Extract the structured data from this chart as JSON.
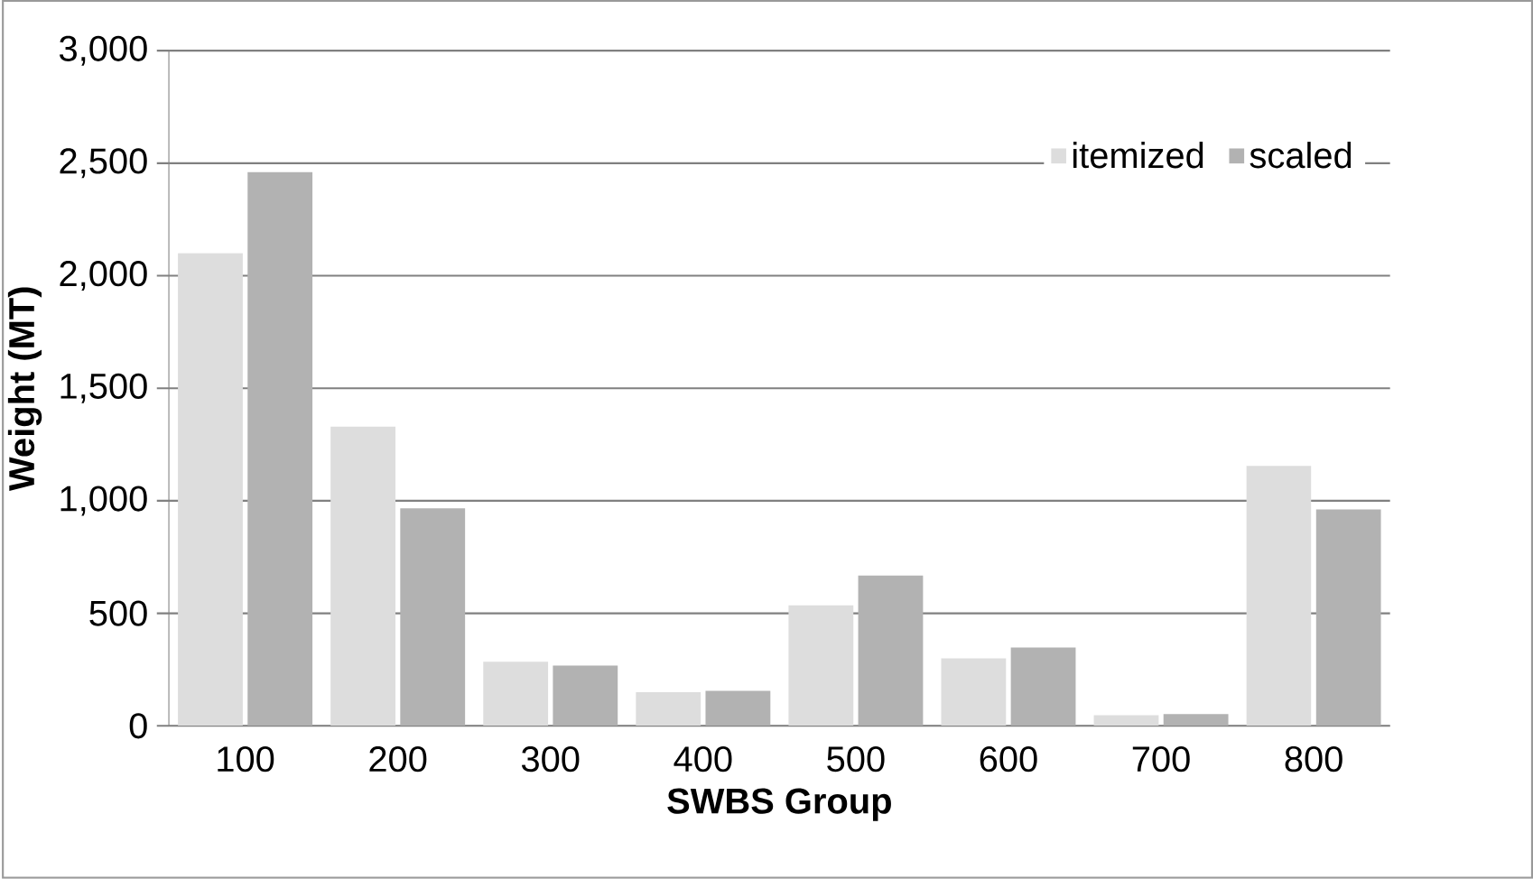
{
  "chart_data": {
    "type": "bar",
    "xlabel": "SWBS Group",
    "ylabel": "Weight (MT)",
    "categories": [
      "100",
      "200",
      "300",
      "400",
      "500",
      "600",
      "700",
      "800"
    ],
    "series": [
      {
        "name": "itemized",
        "color": "#dddddd",
        "values": [
          2100,
          1330,
          285,
          150,
          535,
          300,
          47,
          1155
        ]
      },
      {
        "name": "scaled",
        "color": "#b2b2b2",
        "values": [
          2460,
          967,
          268,
          156,
          668,
          348,
          52,
          962
        ]
      }
    ],
    "ylim": [
      0,
      3000
    ],
    "yticks": [
      {
        "value": 0,
        "label": "0"
      },
      {
        "value": 500,
        "label": "500"
      },
      {
        "value": 1000,
        "label": "1,000"
      },
      {
        "value": 1500,
        "label": "1,500"
      },
      {
        "value": 2000,
        "label": "2,000"
      },
      {
        "value": 2500,
        "label": "2,500"
      },
      {
        "value": 3000,
        "label": "3,000"
      }
    ],
    "grid": "y",
    "legend": "top right"
  }
}
